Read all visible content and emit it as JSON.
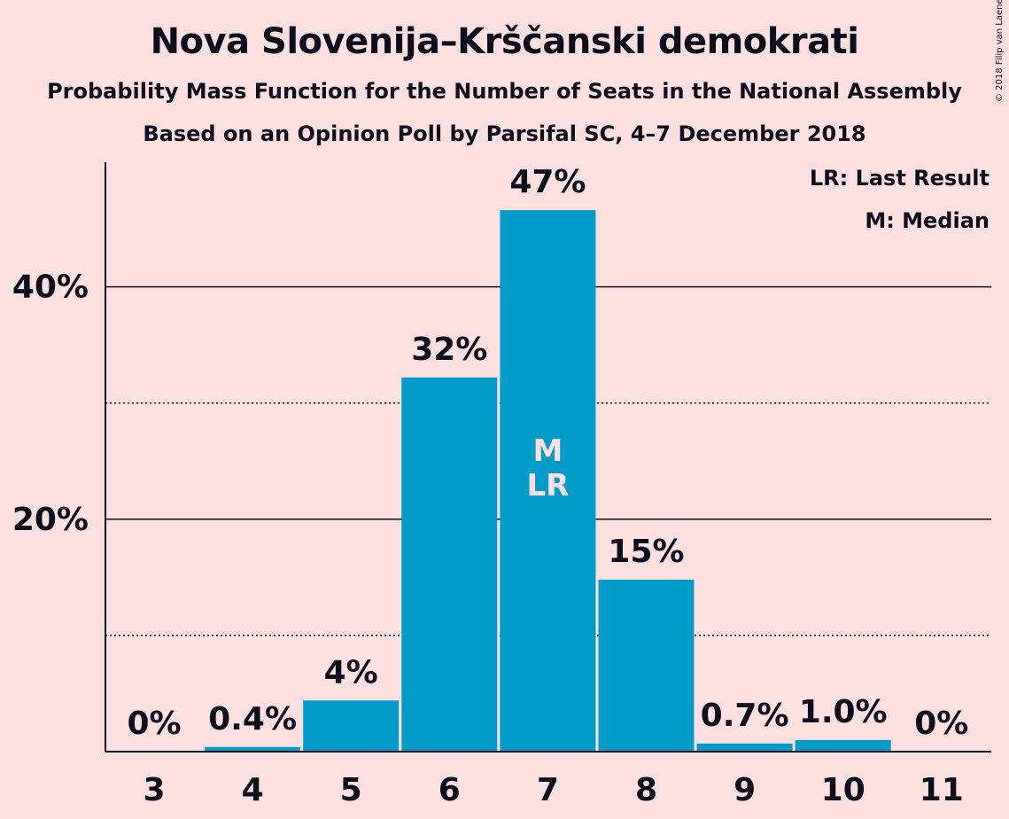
{
  "header": {
    "title": "Nova Slovenija–Krščanski demokrati",
    "subtitle1": "Probability Mass Function for the Number of Seats in the National Assembly",
    "subtitle2": "Based on an Opinion Poll by Parsifal SC, 4–7 December 2018",
    "copyright": "© 2018 Filip van Laenen"
  },
  "legend": {
    "last_result": "LR: Last Result",
    "median": "M: Median"
  },
  "colors": {
    "background": "#ffe0e0",
    "bar": "#009bc8",
    "text": "#0d0d1e"
  },
  "chart_data": {
    "type": "bar",
    "categories": [
      "3",
      "4",
      "5",
      "6",
      "7",
      "8",
      "9",
      "10",
      "11"
    ],
    "values": [
      0,
      0.4,
      4.4,
      32.2,
      46.6,
      14.8,
      0.7,
      1.0,
      0
    ],
    "value_labels": [
      "0%",
      "0.4%",
      "4%",
      "32%",
      "47%",
      "15%",
      "0.7%",
      "1.0%",
      "0%"
    ],
    "yticks": [
      20,
      40
    ],
    "ytick_labels": [
      "20%",
      "40%"
    ],
    "minor_gridlines": [
      10,
      30
    ],
    "ylim": [
      0,
      50
    ],
    "median_index": 4,
    "last_result_index": 4,
    "median_marker": "M",
    "last_result_marker": "LR",
    "grid": true,
    "legend_position": "top-right"
  }
}
